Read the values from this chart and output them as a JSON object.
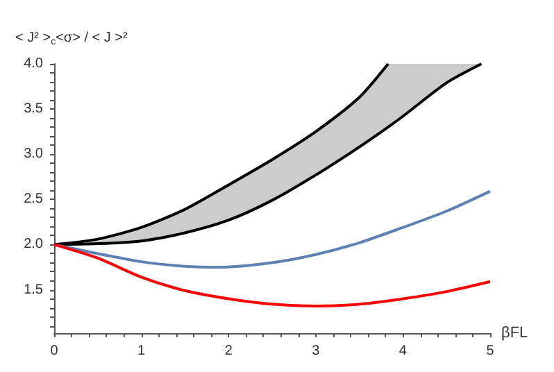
{
  "chart_data": {
    "type": "line",
    "ylabel": "< J² >$_{c}$<σ> / < J >²",
    "xlabel": "βFL",
    "xlim": [
      0,
      5
    ],
    "ylim": [
      1.02,
      4.0
    ],
    "xticks": [
      0,
      {
        "value": 0.2,
        "label": null
      },
      {
        "value": 0.4,
        "label": null
      },
      {
        "value": 0.6,
        "label": null
      },
      {
        "value": 0.8,
        "label": null
      },
      1,
      {
        "value": 1.2,
        "label": null
      },
      {
        "value": 1.4,
        "label": null
      },
      {
        "value": 1.6,
        "label": null
      },
      {
        "value": 1.8,
        "label": null
      },
      2,
      {
        "value": 2.2,
        "label": null
      },
      {
        "value": 2.4,
        "label": null
      },
      {
        "value": 2.6,
        "label": null
      },
      {
        "value": 2.8,
        "label": null
      },
      3,
      {
        "value": 3.2,
        "label": null
      },
      {
        "value": 3.4,
        "label": null
      },
      {
        "value": 3.6,
        "label": null
      },
      {
        "value": 3.8,
        "label": null
      },
      4,
      {
        "value": 4.2,
        "label": null
      },
      {
        "value": 4.4,
        "label": null
      },
      {
        "value": 4.6,
        "label": null
      },
      {
        "value": 4.8,
        "label": null
      },
      5
    ],
    "yticks": [
      {
        "value": 1.1,
        "label": null
      },
      {
        "value": 1.2,
        "label": null
      },
      {
        "value": 1.3,
        "label": null
      },
      {
        "value": 1.4,
        "label": null
      },
      {
        "value": 1.5,
        "label": "1.5"
      },
      {
        "value": 1.6,
        "label": null
      },
      {
        "value": 1.7,
        "label": null
      },
      {
        "value": 1.8,
        "label": null
      },
      {
        "value": 1.9,
        "label": null
      },
      {
        "value": 2.0,
        "label": "2.0"
      },
      {
        "value": 2.1,
        "label": null
      },
      {
        "value": 2.2,
        "label": null
      },
      {
        "value": 2.3,
        "label": null
      },
      {
        "value": 2.4,
        "label": null
      },
      {
        "value": 2.5,
        "label": "2.5"
      },
      {
        "value": 2.6,
        "label": null
      },
      {
        "value": 2.7,
        "label": null
      },
      {
        "value": 2.8,
        "label": null
      },
      {
        "value": 2.9,
        "label": null
      },
      {
        "value": 3.0,
        "label": "3.0"
      },
      {
        "value": 3.1,
        "label": null
      },
      {
        "value": 3.2,
        "label": null
      },
      {
        "value": 3.3,
        "label": null
      },
      {
        "value": 3.4,
        "label": null
      },
      {
        "value": 3.5,
        "label": "3.5"
      },
      {
        "value": 3.6,
        "label": null
      },
      {
        "value": 3.7,
        "label": null
      },
      {
        "value": 3.8,
        "label": null
      },
      {
        "value": 3.9,
        "label": null
      },
      {
        "value": 4.0,
        "label": "4.0"
      }
    ],
    "grid": false,
    "marker": "none",
    "line_style": "solid",
    "series": [
      {
        "color": "#000000",
        "x": [
          0,
          0.5,
          1,
          1.5,
          2,
          2.5,
          3,
          3.5,
          3.83,
          4,
          4.5,
          4.9
        ],
        "values": [
          2.0,
          2.01,
          2.04,
          2.13,
          2.27,
          2.49,
          2.77,
          3.08,
          3.3,
          3.42,
          3.79,
          4.0
        ],
        "lower": [
          2.0,
          2.01,
          2.04,
          2.13,
          2.27,
          2.49,
          2.77,
          3.08,
          3.3,
          3.42,
          3.79,
          4.0
        ],
        "upper": [
          2.0,
          2.06,
          2.19,
          2.39,
          2.66,
          2.94,
          3.25,
          3.63,
          4.0,
          4.0,
          4.0,
          4.0
        ]
      },
      {
        "color": "#000000",
        "x": [
          0,
          0.5,
          1,
          1.5,
          2,
          2.5,
          3,
          3.5,
          3.83
        ],
        "values": [
          2.0,
          2.06,
          2.19,
          2.39,
          2.66,
          2.94,
          3.25,
          3.63,
          4.0
        ]
      },
      {
        "color": "#5e81b5",
        "x": [
          0,
          0.5,
          1,
          1.5,
          1.9,
          2.5,
          3,
          3.5,
          4,
          4.5,
          5
        ],
        "values": [
          2.0,
          1.9,
          1.81,
          1.76,
          1.75,
          1.8,
          1.89,
          2.02,
          2.19,
          2.37,
          2.59
        ]
      },
      {
        "color": "#ff0000",
        "x": [
          0,
          0.5,
          1,
          1.5,
          2,
          2.5,
          3,
          3.5,
          4,
          4.5,
          5
        ],
        "values": [
          2.0,
          1.85,
          1.64,
          1.49,
          1.4,
          1.34,
          1.32,
          1.34,
          1.4,
          1.48,
          1.59
        ]
      }
    ]
  }
}
